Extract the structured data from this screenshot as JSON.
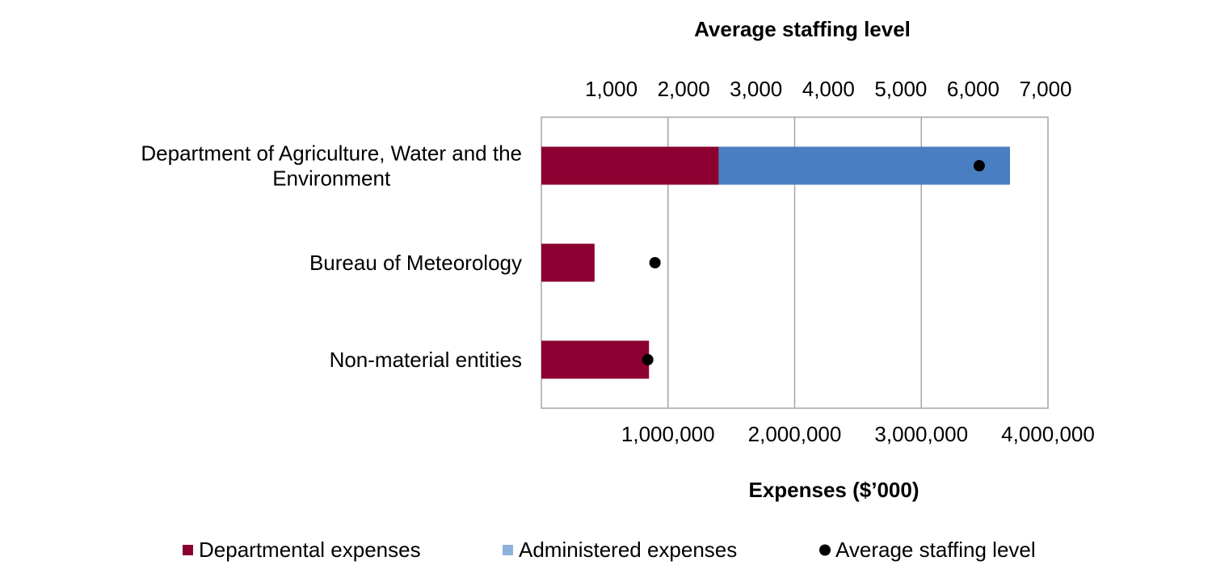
{
  "chart_data": {
    "type": "bar",
    "orientation": "horizontal",
    "stacked": true,
    "categories": [
      [
        "Department of Agriculture, Water and the",
        "Environment"
      ],
      [
        "Bureau of Meteorology"
      ],
      [
        "Non-material entities"
      ]
    ],
    "series": [
      {
        "name": "Departmental expenses",
        "axis": "bottom",
        "values": [
          1400000,
          420000,
          850000
        ],
        "color": "#8b0030"
      },
      {
        "name": "Administered expenses",
        "axis": "bottom",
        "values": [
          2300000,
          0,
          0
        ],
        "color": "#4a7ec3"
      },
      {
        "name": "Average staffing level",
        "axis": "top",
        "marker": "dot",
        "values": [
          6050,
          1570,
          1470
        ],
        "color": "#000000"
      }
    ],
    "top_axis": {
      "title": "Average staffing level",
      "range": [
        0,
        7000
      ],
      "ticks": [
        1000,
        2000,
        3000,
        4000,
        5000,
        6000,
        7000
      ],
      "tick_labels": [
        "1,000",
        "2,000",
        "3,000",
        "4,000",
        "5,000",
        "6,000",
        "7,000"
      ]
    },
    "bottom_axis": {
      "title": "Expenses ($’000)",
      "range": [
        0,
        4000000
      ],
      "ticks": [
        1000000,
        2000000,
        3000000,
        4000000
      ],
      "tick_labels": [
        "1,000,000",
        "2,000,000",
        "3,000,000",
        "4,000,000"
      ]
    },
    "grid": true,
    "legend": {
      "position": "bottom",
      "items": [
        {
          "label": "Departmental expenses",
          "color": "#8b0030",
          "marker": "square"
        },
        {
          "label": "Administered expenses",
          "color": "#8fb0dc",
          "marker": "square"
        },
        {
          "label": "Average staffing level",
          "color": "#000000",
          "marker": "dot"
        }
      ]
    }
  }
}
